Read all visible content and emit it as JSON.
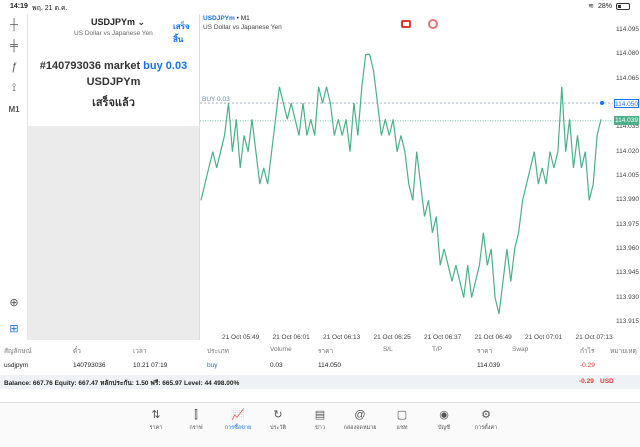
{
  "status_bar": {
    "time": "14:19",
    "date": "พฤ. 21 ต.ค.",
    "battery": "28%"
  },
  "tools": [
    {
      "name": "crosshair-icon",
      "glyph": "┼"
    },
    {
      "name": "indicators-icon",
      "glyph": "╪"
    },
    {
      "name": "function-icon",
      "glyph": "ƒ"
    },
    {
      "name": "objects-icon",
      "glyph": "⟟"
    },
    {
      "name": "timeframe-button",
      "glyph": "M1"
    },
    {
      "name": "zoom-icon",
      "glyph": "⊕"
    },
    {
      "name": "add-icon",
      "glyph": "⊞"
    }
  ],
  "order_panel": {
    "symbol": "USDJPYm",
    "symbol_desc": "US Dollar vs Japanese Yen",
    "done_label": "เสร็จสิ้น",
    "order_line_prefix": "#140793036 market",
    "order_side": "buy 0.03",
    "order_symbol": "USDJPYm",
    "order_status": "เสร็จแล้ว"
  },
  "chart_head": {
    "symbol": "USDJPYm",
    "timeframe": "• M1",
    "desc": "US Dollar vs Japanese Yen"
  },
  "chart_data": {
    "type": "line",
    "series": [
      {
        "values": [
          113.99,
          114.0,
          114.01,
          114.02,
          114.01,
          114.02,
          114.03,
          114.05,
          114.02,
          114.04,
          114.01,
          114.03,
          114.02,
          114.04,
          114.02,
          114.0,
          114.01,
          114.0,
          114.02,
          114.04,
          114.06,
          114.05,
          114.04,
          114.05,
          114.04,
          114.03,
          114.05,
          114.03,
          114.04,
          114.03,
          114.06,
          114.05,
          114.06,
          114.05,
          114.03,
          114.04,
          114.03,
          114.04,
          114.02,
          114.05,
          114.03,
          114.06,
          114.08,
          114.08,
          114.07,
          114.05,
          114.03,
          114.04,
          114.03,
          114.04,
          114.02,
          114.03,
          114.02,
          114.0,
          113.99,
          114.02,
          114.0,
          113.98,
          113.99,
          113.97,
          113.98,
          113.95,
          113.96,
          113.95,
          113.94,
          113.95,
          113.94,
          113.93,
          113.95,
          113.93,
          113.94,
          113.95,
          113.97,
          113.95,
          113.96,
          113.93,
          113.92,
          113.94,
          113.96,
          113.94,
          113.96,
          113.97,
          113.99,
          114.0,
          114.01,
          114.02,
          114.0,
          114.01,
          114.0,
          114.02,
          114.01,
          114.02,
          114.06,
          114.02,
          114.04,
          114.01,
          114.03,
          114.01,
          114.02,
          113.99,
          114.0,
          114.03,
          114.04
        ]
      }
    ],
    "x_ticks": [
      "21 Oct 05:49",
      "21 Oct 06:01",
      "21 Oct 06:13",
      "21 Oct 06:25",
      "21 Oct 06:37",
      "21 Oct 06:49",
      "21 Oct 07:01",
      "21 Oct 07:13"
    ],
    "y_ticks": [
      "114.095",
      "114.080",
      "114.065",
      "114.050",
      "114.035",
      "114.020",
      "114.005",
      "113.990",
      "113.975",
      "113.960",
      "113.945",
      "113.930",
      "113.915"
    ],
    "ylim": [
      113.91,
      114.1
    ],
    "buy_level": 114.05,
    "buy_label": "BUY 0.03",
    "current_price": 114.039,
    "buy_price_label": "114.050",
    "current_price_label": "114.039",
    "line_color": "#4caf8a",
    "buy_line_color": "#9aa7b8",
    "current_line_color": "#4caf8a",
    "grid": false
  },
  "positions_table": {
    "headers": [
      "สัญลักษณ์",
      "ตั๋ว",
      "เวลา",
      "ประเภท",
      "Volume",
      "ราคา",
      "S/L",
      "T/P",
      "ราคา",
      "Swap",
      "กำไร",
      "หมายเหตุ"
    ],
    "row": [
      "usdjpym",
      "140793036",
      "10.21 07:19",
      "buy",
      "0.03",
      "114.050",
      "",
      "",
      "114.039",
      "",
      "-0.29",
      ""
    ]
  },
  "balance_bar": {
    "text": "Balance: 667.76 Equity: 667.47 หลักประกัน: 1.50 ฟรี: 665.97 Level: 44 498.00%",
    "profit": "-0.29",
    "currency": "USD"
  },
  "nav": [
    {
      "label": "ราคา",
      "icon": "quotes-icon",
      "glyph": "⇅"
    },
    {
      "label": "กราฟ",
      "icon": "chart-icon",
      "glyph": "⫿"
    },
    {
      "label": "การซื้อขาย",
      "icon": "trade-icon",
      "glyph": "📈"
    },
    {
      "label": "ประวัติ",
      "icon": "history-icon",
      "glyph": "↻"
    },
    {
      "label": "ข่าว",
      "icon": "news-icon",
      "glyph": "▤"
    },
    {
      "label": "กล่องจดหมาย",
      "icon": "mailbox-icon",
      "glyph": "@"
    },
    {
      "label": "แชท",
      "icon": "chat-icon",
      "glyph": "▢"
    },
    {
      "label": "บัญชี",
      "icon": "account-icon",
      "glyph": "◉"
    },
    {
      "label": "การตั้งค่า",
      "icon": "settings-icon",
      "glyph": "⚙"
    }
  ],
  "colors": {
    "accent": "#1a73e8",
    "loss": "#e53935"
  }
}
